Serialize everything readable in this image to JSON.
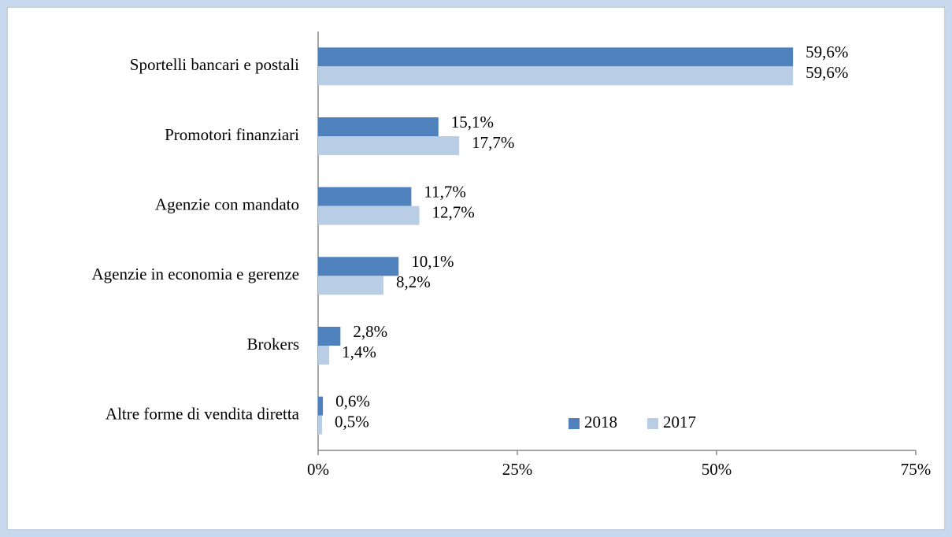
{
  "chart_data": {
    "type": "barh",
    "categories": [
      "Sportelli bancari e postali",
      "Promotori finanziari",
      "Agenzie con mandato",
      "Agenzie in economia e gerenze",
      "Brokers",
      "Altre forme di vendita diretta"
    ],
    "series": [
      {
        "name": "2018",
        "color": "#4f81bd",
        "values": [
          59.6,
          15.1,
          11.7,
          10.1,
          2.8,
          0.6
        ],
        "value_labels": [
          "59,6%",
          "15,1%",
          "11,7%",
          "10,1%",
          "2,8%",
          "0,6%"
        ]
      },
      {
        "name": "2017",
        "color": "#b9cde5",
        "values": [
          59.6,
          17.7,
          12.7,
          8.2,
          1.4,
          0.5
        ],
        "value_labels": [
          "59,6%",
          "17,7%",
          "12,7%",
          "8,2%",
          "1,4%",
          "0,5%"
        ]
      }
    ],
    "xlim": [
      0,
      75
    ],
    "xticks": [
      {
        "value": 0,
        "label": "0%"
      },
      {
        "value": 25,
        "label": "25%"
      },
      {
        "value": 50,
        "label": "50%"
      },
      {
        "value": 75,
        "label": "75%"
      }
    ],
    "legend": "bottom"
  }
}
